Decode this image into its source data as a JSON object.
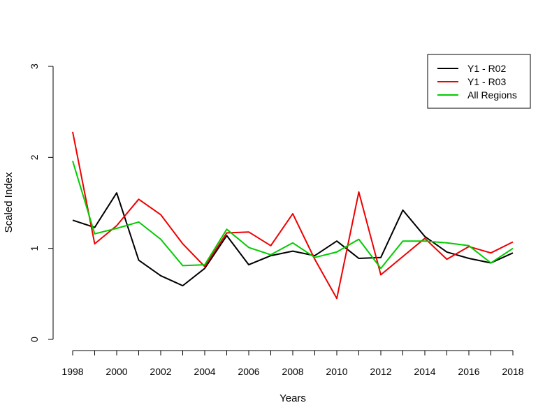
{
  "chart_data": {
    "type": "line",
    "title": "",
    "xlabel": "Years",
    "ylabel": "Scaled Index",
    "x": [
      1998,
      1999,
      2000,
      2001,
      2002,
      2003,
      2004,
      2005,
      2006,
      2007,
      2008,
      2009,
      2010,
      2011,
      2012,
      2013,
      2014,
      2015,
      2016,
      2017,
      2018
    ],
    "xticks": [
      "1998",
      "2000",
      "2002",
      "2004",
      "2006",
      "2008",
      "2010",
      "2012",
      "2014",
      "2016",
      "2018"
    ],
    "yticks": [
      "0",
      "1",
      "2",
      "3"
    ],
    "xlim": [
      1998,
      2018
    ],
    "ylim": [
      0,
      3
    ],
    "grid": false,
    "legend_position": "top-right",
    "series": [
      {
        "name": "Y1 - R02",
        "color": "#000000",
        "values": [
          1.31,
          1.23,
          1.61,
          0.87,
          0.7,
          0.59,
          0.78,
          1.14,
          0.82,
          0.92,
          0.97,
          0.92,
          1.08,
          0.89,
          0.9,
          1.42,
          1.13,
          0.96,
          0.89,
          0.84,
          0.95
        ]
      },
      {
        "name": "Y1 - R03",
        "color": "#ee0000",
        "values": [
          2.28,
          1.05,
          1.25,
          1.54,
          1.37,
          1.05,
          0.8,
          1.17,
          1.18,
          1.03,
          1.38,
          0.88,
          0.45,
          1.62,
          0.71,
          0.91,
          1.11,
          0.88,
          1.02,
          0.95,
          1.07
        ]
      },
      {
        "name": "All Regions",
        "color": "#00cc00",
        "values": [
          1.96,
          1.16,
          1.22,
          1.29,
          1.1,
          0.81,
          0.82,
          1.21,
          1.01,
          0.93,
          1.06,
          0.9,
          0.96,
          1.1,
          0.78,
          1.08,
          1.08,
          1.06,
          1.03,
          0.84,
          1.0
        ]
      }
    ]
  }
}
